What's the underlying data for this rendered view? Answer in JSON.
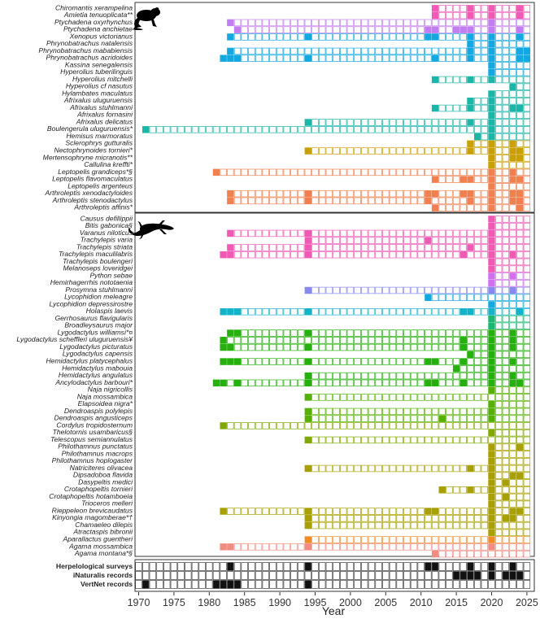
{
  "chart_data": {
    "type": "heatmap",
    "title": "",
    "xlabel": "Year",
    "ylabel": "",
    "x_range": [
      1970,
      2025
    ],
    "x_ticks": [
      1970,
      1975,
      1980,
      1985,
      1990,
      1995,
      2000,
      2005,
      2010,
      2015,
      2020,
      2025
    ],
    "x_tick_labels": [
      "1970",
      "1975",
      "1980",
      "1985",
      "1990",
      "1995",
      "2000",
      "2005",
      "2010",
      "2015",
      "2020",
      "2025"
    ],
    "cell_states": {
      "filled": "species recorded in that year",
      "open": "species not recorded, within span from first record to 2025"
    },
    "panels": [
      {
        "name": "amphibians",
        "icon": "frog-silhouette-icon",
        "rows": [
          {
            "species": "Chiromantis xerampelina",
            "color": "#f05ab4",
            "first": 2012,
            "years": [
              2012,
              2017,
              2020,
              2024
            ]
          },
          {
            "species": "Amietia tenuoplicata**",
            "color": "#f05ab4",
            "first": 2012,
            "years": [
              2012,
              2017,
              2020,
              2024
            ]
          },
          {
            "species": "Ptychadena oxyrhynchus",
            "color": "#c27ef0",
            "first": 1983,
            "years": [
              1983,
              2020
            ]
          },
          {
            "species": "Ptychadena anchietae",
            "color": "#c27ef0",
            "first": 1984,
            "years": [
              1984,
              2011,
              2012,
              2015,
              2016,
              2017,
              2020,
              2024
            ]
          },
          {
            "species": "Xenopus victorianus",
            "color": "#14a8e0",
            "first": 1983,
            "years": [
              1983,
              1994,
              2011,
              2012,
              2017,
              2020,
              2024
            ]
          },
          {
            "species": "Phrynobatrachus natalensis",
            "color": "#14a8e0",
            "first": 2017,
            "years": [
              2017,
              2020
            ]
          },
          {
            "species": "Phrynobatrachus mababiensis",
            "color": "#14a8e0",
            "first": 1983,
            "years": [
              1983,
              2017,
              2020,
              2024,
              2025
            ]
          },
          {
            "species": "Phrynobatrachus acridoides",
            "color": "#14a8e0",
            "first": 1982,
            "years": [
              1982,
              1983,
              1984,
              1994,
              2012,
              2017,
              2020,
              2024,
              2025
            ]
          },
          {
            "species": "Kassina senegalensis",
            "color": "#14a8e0",
            "first": 2020,
            "years": [
              2020
            ]
          },
          {
            "species": "Hyperolius tuberilinguis",
            "color": "#14a8e0",
            "first": 2020,
            "years": [
              2020
            ]
          },
          {
            "species": "Hyperolius mitchelli",
            "color": "#1bb6a8",
            "first": 2012,
            "years": [
              2012,
              2017,
              2020
            ]
          },
          {
            "species": "Hyperolius cf nasutus",
            "color": "#1bb6a8",
            "first": 2023,
            "years": [
              2023
            ]
          },
          {
            "species": "Hylambates maculatus",
            "color": "#1bb6a8",
            "first": 2020,
            "years": [
              2020
            ]
          },
          {
            "species": "Afrixalus uluguruensis",
            "color": "#1bb6a8",
            "first": 2017,
            "years": [
              2017,
              2020
            ]
          },
          {
            "species": "Afrixalus stuhlmanni",
            "color": "#1bb6a8",
            "first": 2012,
            "years": [
              2012,
              2017,
              2020,
              2023,
              2024
            ]
          },
          {
            "species": "Afrixalus fornasini",
            "color": "#1bb6a8",
            "first": 2020,
            "years": [
              2020
            ]
          },
          {
            "species": "Afrixalus delicatus",
            "color": "#1bb6a8",
            "first": 1994,
            "years": [
              1994,
              2017,
              2020
            ]
          },
          {
            "species": "Boulengerula uluguruensis*",
            "color": "#1bb6a8",
            "first": 1971,
            "years": [
              1971,
              2020
            ]
          },
          {
            "species": "Hemisus marmoratus",
            "color": "#1bb6a8",
            "first": 2018,
            "years": [
              2018,
              2020
            ]
          },
          {
            "species": "Sclerophrys gutturalis",
            "color": "#c8a000",
            "first": 2017,
            "years": [
              2017,
              2020,
              2023
            ]
          },
          {
            "species": "Nectophrynoides tornieri*",
            "color": "#c8a000",
            "first": 1994,
            "years": [
              1994,
              2017,
              2020,
              2023,
              2024
            ]
          },
          {
            "species": "Mertensophryne micranotis**",
            "color": "#c8a000",
            "first": 2020,
            "years": [
              2020,
              2023,
              2024
            ]
          },
          {
            "species": "Callulina kreffti*",
            "color": "#c8a000",
            "first": 2020,
            "years": [
              2020
            ]
          },
          {
            "species": "Leptopelis grandiceps*§",
            "color": "#f08050",
            "first": 1981,
            "years": [
              1981,
              2020,
              2023
            ]
          },
          {
            "species": "Leptopelis flavomaculatus",
            "color": "#f08050",
            "first": 2012,
            "years": [
              2012,
              2016,
              2017,
              2020,
              2023,
              2024
            ]
          },
          {
            "species": "Leptopelis argenteus",
            "color": "#f08050",
            "first": 2020,
            "years": [
              2020
            ]
          },
          {
            "species": "Arthroleptis xenodactyloides",
            "color": "#f08050",
            "first": 1983,
            "years": [
              1983,
              1994,
              2011,
              2012,
              2016,
              2017,
              2020,
              2023,
              2024
            ]
          },
          {
            "species": "Arthroleptis stenodactylus",
            "color": "#f08050",
            "first": 1983,
            "years": [
              1983,
              1994,
              2011,
              2017,
              2020,
              2023,
              2024
            ]
          },
          {
            "species": "Arthroleptis affinis*",
            "color": "#f08050",
            "first": 2012,
            "years": [
              2012,
              2020,
              2024
            ]
          }
        ]
      },
      {
        "name": "reptiles",
        "icon": "lizard-silhouette-icon",
        "rows": [
          {
            "species": "Causus defillippii",
            "color": "#f05ab4",
            "first": 2020,
            "years": [
              2020
            ]
          },
          {
            "species": "Bitis gabonica§",
            "color": "#f05ab4",
            "first": 2020,
            "years": [
              2020
            ]
          },
          {
            "species": "Varanus niloticus",
            "color": "#f05ab4",
            "first": 1983,
            "years": [
              1983,
              1994,
              2020
            ]
          },
          {
            "species": "Trachylepis varia",
            "color": "#f05ab4",
            "first": 1994,
            "years": [
              1994,
              2011,
              2020
            ]
          },
          {
            "species": "Trachylepis striata",
            "color": "#f05ab4",
            "first": 1983,
            "years": [
              1983,
              1994,
              2017,
              2020
            ]
          },
          {
            "species": "Trachylepis maculilabris",
            "color": "#f05ab4",
            "first": 1982,
            "years": [
              1982,
              1983,
              1994,
              2016,
              2020,
              2023
            ]
          },
          {
            "species": "Trachylepis boulengeri",
            "color": "#f05ab4",
            "first": 2020,
            "years": [
              2020
            ]
          },
          {
            "species": "Melanoseps loveridgei",
            "color": "#f05ab4",
            "first": 2020,
            "years": [
              2020
            ]
          },
          {
            "species": "Python sebae",
            "color": "#d070f0",
            "first": 2020,
            "years": [
              2020,
              2023
            ]
          },
          {
            "species": "Hemirhagerrhis nototaenia",
            "color": "#d070f0",
            "first": 2020,
            "years": [
              2020
            ]
          },
          {
            "species": "Prosymna stuhlmanni",
            "color": "#8888f0",
            "first": 1994,
            "years": [
              1994,
              2020,
              2023
            ]
          },
          {
            "species": "Lycophidion meleagre",
            "color": "#14a8e0",
            "first": 2011,
            "years": [
              2011
            ]
          },
          {
            "species": "Lycophidion depressirostre",
            "color": "#14a8e0",
            "first": 2020,
            "years": [
              2020
            ]
          },
          {
            "species": "Holaspis laevis",
            "color": "#14b4c8",
            "first": 1982,
            "years": [
              1982,
              1983,
              1984,
              1994,
              2016,
              2017,
              2020,
              2024
            ]
          },
          {
            "species": "Gerrhosaurus flavigularis",
            "color": "#1ab870",
            "first": 2020,
            "years": [
              2020
            ]
          },
          {
            "species": "Broadleysaurus major",
            "color": "#1ab870",
            "first": 2020,
            "years": [
              2020
            ]
          },
          {
            "species": "Lygodactylus williamsi*¤",
            "color": "#26b00e",
            "first": 1983,
            "years": [
              1983,
              1984,
              1994,
              2020,
              2023
            ]
          },
          {
            "species": "Lygodactylus scheffleri uluguruensis¥",
            "color": "#26b00e",
            "first": 1982,
            "years": [
              1982,
              2016,
              2020,
              2023
            ]
          },
          {
            "species": "Lygodactylus picturatus",
            "color": "#26b00e",
            "first": 1982,
            "years": [
              1982,
              1983,
              1994,
              2016,
              2020,
              2023
            ]
          },
          {
            "species": "Lygodactylus capensis",
            "color": "#26b00e",
            "first": 2017,
            "years": [
              2017,
              2020
            ]
          },
          {
            "species": "Hemidactylus platycephalus",
            "color": "#26b00e",
            "first": 1982,
            "years": [
              1982,
              1983,
              1984,
              1994,
              2011,
              2012,
              2016,
              2020,
              2023
            ]
          },
          {
            "species": "Hemidactylus mabouia",
            "color": "#26b00e",
            "first": 2015,
            "years": [
              2015,
              2020
            ]
          },
          {
            "species": "Hemidactylus angulatus",
            "color": "#26b00e",
            "first": 1994,
            "years": [
              1994,
              2020,
              2023
            ]
          },
          {
            "species": "Ancylodactylus barbouri*",
            "color": "#26b00e",
            "first": 1981,
            "years": [
              1981,
              1982,
              1984,
              1994,
              2011,
              2012,
              2016,
              2020,
              2023,
              2024
            ]
          },
          {
            "species": "Naja nigricollis",
            "color": "#55b000",
            "first": 2020,
            "years": [
              2020
            ]
          },
          {
            "species": "Naja mossambica",
            "color": "#55b000",
            "first": 1994,
            "years": [
              1994
            ]
          },
          {
            "species": "Elapsoidea nigra*",
            "color": "#55b000",
            "first": 2020,
            "years": [
              2020
            ]
          },
          {
            "species": "Dendroaspis polylepis",
            "color": "#55b000",
            "first": 1994,
            "years": [
              1994,
              2020
            ]
          },
          {
            "species": "Dendroaspis angusticeps",
            "color": "#55b000",
            "first": 1994,
            "years": [
              1994,
              2013,
              2020
            ]
          },
          {
            "species": "Cordylus tropidosternum",
            "color": "#80a800",
            "first": 1982,
            "years": [
              1982
            ]
          },
          {
            "species": "Thelotornis usambaricus§",
            "color": "#80a800",
            "first": 2020,
            "years": [
              2020
            ]
          },
          {
            "species": "Telescopus semiannulatus",
            "color": "#80a800",
            "first": 1994,
            "years": [
              1994
            ]
          },
          {
            "species": "Philothamnus punctatus",
            "color": "#a8a000",
            "first": 2020,
            "years": [
              2020,
              2024
            ]
          },
          {
            "species": "Philothamnus macrops",
            "color": "#a8a000",
            "first": 2020,
            "years": [
              2020
            ]
          },
          {
            "species": "Philothamnus hoplogaster",
            "color": "#a8a000",
            "first": 2020,
            "years": [
              2020
            ]
          },
          {
            "species": "Natriciteres olivacea",
            "color": "#a8a000",
            "first": 1994,
            "years": [
              1994,
              2017,
              2020
            ]
          },
          {
            "species": "Dipsadoboa flavida",
            "color": "#a8a000",
            "first": 2020,
            "years": [
              2020,
              2023,
              2024
            ]
          },
          {
            "species": "Dasypeltis medici",
            "color": "#a8a000",
            "first": 2020,
            "years": [
              2020,
              2022
            ]
          },
          {
            "species": "Crotaphopeltis tornieri",
            "color": "#a8a000",
            "first": 2013,
            "years": [
              2013,
              2017,
              2020
            ]
          },
          {
            "species": "Crotaphopeltis hotamboeia",
            "color": "#a8a000",
            "first": 2020,
            "years": [
              2020,
              2022
            ]
          },
          {
            "species": "Trioceros melleri",
            "color": "#a8a000",
            "first": 2020,
            "years": [
              2020
            ]
          },
          {
            "species": "Rieppeleon brevicaudatus",
            "color": "#a8a000",
            "first": 1982,
            "years": [
              1982,
              1994,
              2011,
              2012,
              2020,
              2023,
              2024
            ]
          },
          {
            "species": "Kinyongia magomberae*†",
            "color": "#a8a000",
            "first": 1994,
            "years": [
              1994,
              2020,
              2022,
              2023
            ]
          },
          {
            "species": "Chamaeleo dilepis",
            "color": "#a8a000",
            "first": 1994,
            "years": [
              1994,
              2020
            ]
          },
          {
            "species": "Atractaspis bibronii",
            "color": "#a8a000",
            "first": 2020,
            "years": [
              2020
            ]
          },
          {
            "species": "Aparallactus guentheri",
            "color": "#f08c28",
            "first": 1994,
            "years": [
              1994,
              2020
            ]
          },
          {
            "species": "Agama mossambica",
            "color": "#f08c82",
            "first": 1982,
            "years": [
              1982,
              1983,
              1994,
              2020
            ]
          },
          {
            "species": "Agama montana*§",
            "color": "#f08c82",
            "first": 2012,
            "years": [
              2012
            ]
          }
        ]
      }
    ],
    "sources": {
      "color": "#111111",
      "rows": [
        {
          "name": "Herpelological surveys",
          "years": [
            1983,
            1994,
            2011,
            2012,
            2017,
            2020,
            2023
          ]
        },
        {
          "name": "iNaturalis records",
          "years": [
            2015,
            2016,
            2017,
            2018,
            2020,
            2022,
            2023,
            2024
          ]
        },
        {
          "name": "VertNet records",
          "years": [
            1971,
            1981,
            1982,
            1983,
            1984,
            1994
          ]
        }
      ]
    }
  }
}
